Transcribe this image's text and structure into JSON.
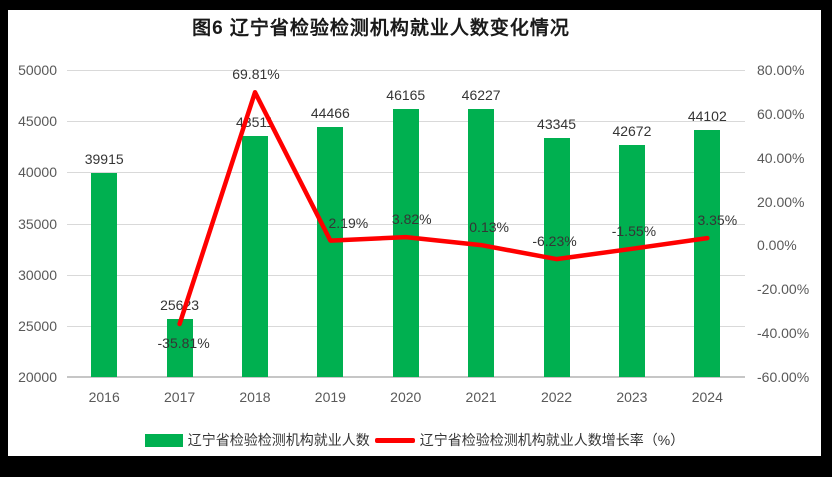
{
  "chart_data": {
    "type": "combo-bar-line",
    "title": "图6  辽宁省检验检测机构就业人数变化情况",
    "categories": [
      "2016",
      "2017",
      "2018",
      "2019",
      "2020",
      "2021",
      "2022",
      "2023",
      "2024"
    ],
    "series": [
      {
        "name": "辽宁省检验检测机构就业人数",
        "type": "bar",
        "axis": "left",
        "color": "#00B050",
        "values": [
          39915,
          25623,
          43511,
          44466,
          46165,
          46227,
          43345,
          42672,
          44102
        ],
        "labels": [
          "39915",
          "25623",
          "43511",
          "44466",
          "46165",
          "46227",
          "43345",
          "42672",
          "44102"
        ]
      },
      {
        "name": "辽宁省检验检测机构就业人数增长率（%）",
        "type": "line",
        "axis": "right",
        "color": "#FF0000",
        "values": [
          null,
          -35.81,
          69.81,
          2.19,
          3.82,
          0.13,
          -6.23,
          -1.55,
          3.35
        ],
        "labels": [
          null,
          "-35.81%",
          "69.81%",
          "2.19%",
          "3.82%",
          "0.13%",
          "-6.23%",
          "-1.55%",
          "3.35%"
        ]
      }
    ],
    "left_axis": {
      "min": 20000,
      "max": 50000,
      "step": 5000,
      "ticks": [
        "50000",
        "45000",
        "40000",
        "35000",
        "30000",
        "25000",
        "20000"
      ]
    },
    "right_axis": {
      "min": -60,
      "max": 80,
      "step": 20,
      "ticks": [
        "80.00%",
        "60.00%",
        "40.00%",
        "20.00%",
        "0.00%",
        "-20.00%",
        "-40.00%",
        "-60.00%"
      ]
    },
    "grid": "horizontal",
    "legend_position": "bottom",
    "colors": {
      "bar": "#00B050",
      "line": "#FF0000",
      "grid": "#d9d9d9",
      "axis_text": "#595959",
      "label_text": "#353535"
    }
  }
}
